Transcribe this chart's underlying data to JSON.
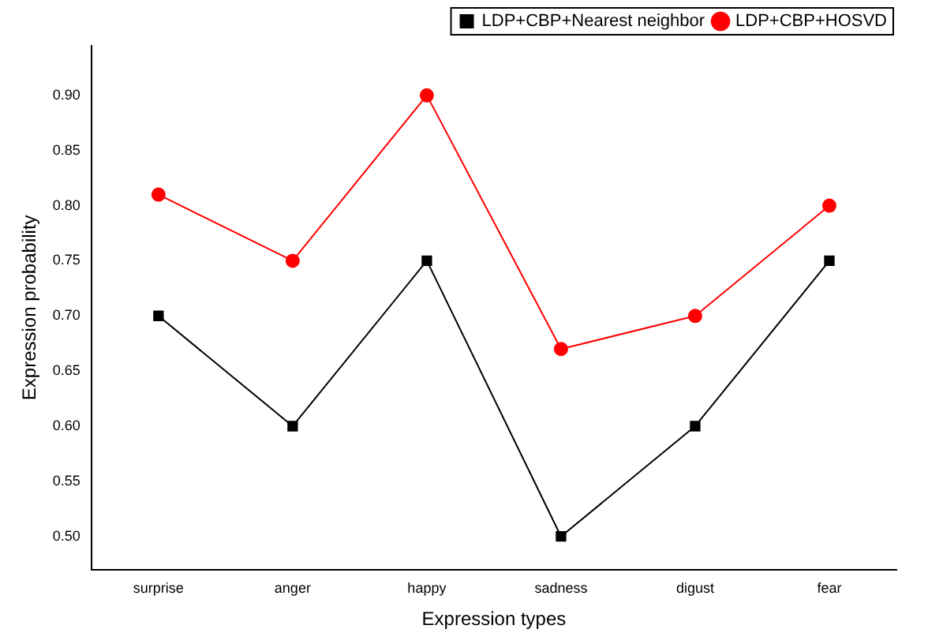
{
  "chart_data": {
    "type": "line",
    "xlabel": "Expression types",
    "ylabel": "Expression probability",
    "categories": [
      "surprise",
      "anger",
      "happy",
      "sadness",
      "digust",
      "fear"
    ],
    "series": [
      {
        "name": "LDP+CBP+Nearest neighbor",
        "color": "#000000",
        "marker": "square",
        "values": [
          0.7,
          0.6,
          0.75,
          0.5,
          0.6,
          0.75
        ]
      },
      {
        "name": "LDP+CBP+HOSVD",
        "color": "#ff0000",
        "marker": "circle",
        "values": [
          0.81,
          0.75,
          0.9,
          0.67,
          0.7,
          0.8
        ]
      }
    ],
    "ylim": [
      0.47,
      0.945
    ],
    "yticks": [
      {
        "value": 0.5,
        "label": "0.50"
      },
      {
        "value": 0.55,
        "label": "0.55"
      },
      {
        "value": 0.6,
        "label": "0.60"
      },
      {
        "value": 0.65,
        "label": "0.65"
      },
      {
        "value": 0.7,
        "label": "0.70"
      },
      {
        "value": 0.75,
        "label": "0.75"
      },
      {
        "value": 0.8,
        "label": "0.80"
      },
      {
        "value": 0.85,
        "label": "0.85"
      },
      {
        "value": 0.9,
        "label": "0.90"
      }
    ],
    "grid": false,
    "legend": "top right",
    "line_style": "solid"
  }
}
